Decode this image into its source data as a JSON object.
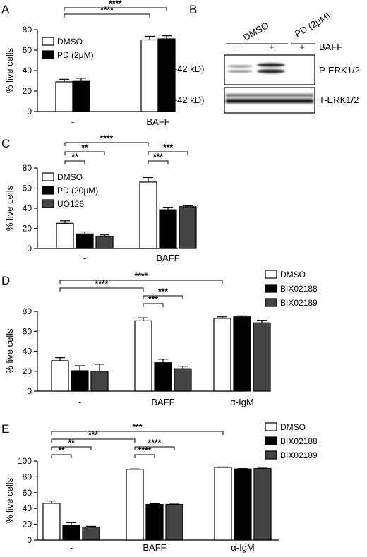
{
  "figure": {
    "background": "#ffffff",
    "series_colors": {
      "DMSO": "#ffffff",
      "black": "#000000",
      "gray": "#444444"
    }
  },
  "chart_data": [
    {
      "panel": "A",
      "type": "bar",
      "ylabel": "% live cells",
      "ylim": [
        0,
        80
      ],
      "yticks": [
        0,
        20,
        40,
        60,
        80
      ],
      "categories": [
        "-",
        "BAFF"
      ],
      "legend": "top-left",
      "series": [
        {
          "name": "DMSO",
          "color": "#ffffff",
          "values": [
            29,
            70
          ],
          "errors": [
            2.5,
            3.5
          ]
        },
        {
          "name": "PD (2μM)",
          "color": "#000000",
          "values": [
            29.5,
            71
          ],
          "errors": [
            3,
            3
          ]
        }
      ],
      "significance": [
        {
          "from": [
            0,
            0
          ],
          "to": [
            1,
            0
          ],
          "label": "****",
          "level": 0
        },
        {
          "from": [
            0,
            0
          ],
          "to": [
            1,
            1
          ],
          "label": "****",
          "level": 1
        }
      ]
    },
    {
      "panel": "C",
      "type": "bar",
      "ylabel": "% live cells",
      "ylim": [
        0,
        80
      ],
      "yticks": [
        0,
        20,
        40,
        60,
        80
      ],
      "categories": [
        "-",
        "BAFF"
      ],
      "legend": "middle-left",
      "series": [
        {
          "name": "DMSO",
          "color": "#ffffff",
          "values": [
            25,
            66
          ],
          "errors": [
            2.5,
            4.5
          ]
        },
        {
          "name": "PD (20μM)",
          "color": "#000000",
          "values": [
            14.5,
            38.5
          ],
          "errors": [
            2,
            2.5
          ]
        },
        {
          "name": "UO126",
          "color": "#444444",
          "values": [
            12,
            41.5
          ],
          "errors": [
            1.5,
            1
          ]
        }
      ],
      "significance": [
        {
          "from": [
            0,
            0
          ],
          "to": [
            0,
            1
          ],
          "label": "**",
          "level": 0
        },
        {
          "from": [
            0,
            0
          ],
          "to": [
            0,
            2
          ],
          "label": "**",
          "level": 1
        },
        {
          "from": [
            0,
            0
          ],
          "to": [
            1,
            0
          ],
          "label": "****",
          "level": 2
        },
        {
          "from": [
            1,
            0
          ],
          "to": [
            1,
            1
          ],
          "label": "***",
          "level": 0
        },
        {
          "from": [
            1,
            0
          ],
          "to": [
            1,
            2
          ],
          "label": "***",
          "level": 1
        }
      ]
    },
    {
      "panel": "D",
      "type": "bar",
      "ylabel": "% live cells",
      "ylim": [
        0,
        80
      ],
      "yticks": [
        0,
        20,
        40,
        60,
        80
      ],
      "categories": [
        "-",
        "BAFF",
        "α-IgM"
      ],
      "legend": "top-right",
      "series": [
        {
          "name": "DMSO",
          "color": "#ffffff",
          "values": [
            30.5,
            70.5,
            73
          ],
          "errors": [
            3,
            3,
            1.5
          ]
        },
        {
          "name": "BIX02188",
          "color": "#000000",
          "values": [
            20.5,
            28.5,
            74.5
          ],
          "errors": [
            5,
            3.5,
            1
          ]
        },
        {
          "name": "BIX02189",
          "color": "#444444",
          "values": [
            20,
            22.5,
            68.5
          ],
          "errors": [
            7,
            2.5,
            2.5
          ]
        }
      ],
      "significance": [
        {
          "from": [
            1,
            0
          ],
          "to": [
            1,
            1
          ],
          "label": "***",
          "level": 0
        },
        {
          "from": [
            1,
            0
          ],
          "to": [
            1,
            2
          ],
          "label": "***",
          "level": 1
        },
        {
          "from": [
            0,
            0
          ],
          "to": [
            1,
            0
          ],
          "label": "****",
          "level": 2
        },
        {
          "from": [
            0,
            0
          ],
          "to": [
            2,
            0
          ],
          "label": "****",
          "level": 3
        }
      ]
    },
    {
      "panel": "E",
      "type": "bar",
      "ylabel": "% live cells",
      "ylim": [
        0,
        100
      ],
      "yticks": [
        0,
        20,
        40,
        60,
        80,
        100
      ],
      "categories": [
        "-",
        "BAFF",
        "α-IgM"
      ],
      "legend": "top-right",
      "series": [
        {
          "name": "DMSO",
          "color": "#ffffff",
          "values": [
            46.5,
            89.5,
            92
          ],
          "errors": [
            3,
            0.5,
            0.5
          ]
        },
        {
          "name": "BIX02188",
          "color": "#000000",
          "values": [
            19,
            45,
            90
          ],
          "errors": [
            3,
            1,
            0.5
          ]
        },
        {
          "name": "BIX02189",
          "color": "#444444",
          "values": [
            16.5,
            45,
            90.5
          ],
          "errors": [
            1,
            0.5,
            0.5
          ]
        }
      ],
      "significance": [
        {
          "from": [
            0,
            0
          ],
          "to": [
            0,
            1
          ],
          "label": "**",
          "level": 0
        },
        {
          "from": [
            0,
            0
          ],
          "to": [
            0,
            2
          ],
          "label": "**",
          "level": 1
        },
        {
          "from": [
            1,
            0
          ],
          "to": [
            1,
            1
          ],
          "label": "****",
          "level": 0
        },
        {
          "from": [
            1,
            0
          ],
          "to": [
            1,
            2
          ],
          "label": "****",
          "level": 1
        },
        {
          "from": [
            0,
            0
          ],
          "to": [
            1,
            0
          ],
          "label": "***",
          "level": 2
        },
        {
          "from": [
            0,
            0
          ],
          "to": [
            2,
            0
          ],
          "label": "***",
          "level": 3
        }
      ]
    }
  ],
  "blot": {
    "panel": "B",
    "group_labels": [
      "DMSO",
      "PD (2μM)"
    ],
    "baff_label": "BAFF",
    "lane_signs": [
      "−",
      "+",
      "+"
    ],
    "bands": [
      {
        "size_label": "(44-42 kD)",
        "name": "P-ERK1/2"
      },
      {
        "size_label": "(44-42 kD)",
        "name": "T-ERK1/2"
      }
    ]
  }
}
